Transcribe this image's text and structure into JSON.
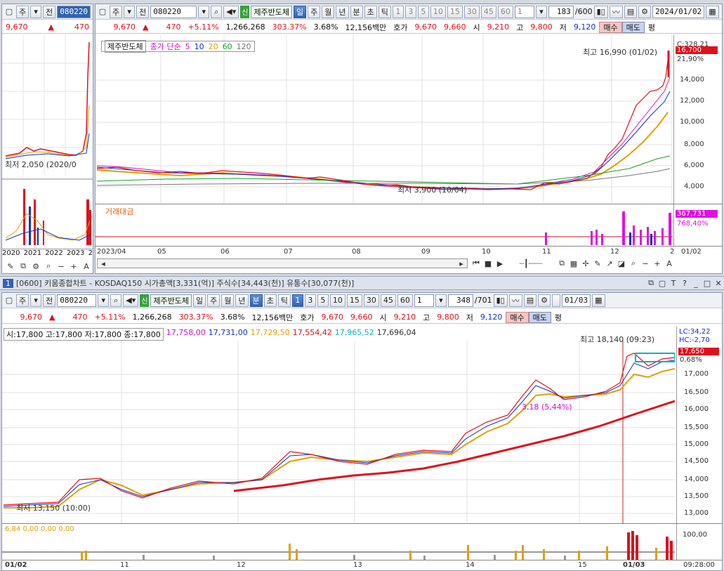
{
  "top_left": {
    "toolbar": {
      "type": "주",
      "prev": "전",
      "code": "080220"
    },
    "quote": {
      "price": "9,670",
      "change": "470"
    },
    "price_low": "최저 2,050 (2020/0",
    "years": [
      "2020",
      "2021",
      "2022",
      "2023",
      "2"
    ]
  },
  "top_main": {
    "toolbar": {
      "type": "주",
      "prev": "전",
      "code": "080220",
      "name": "제주반도체",
      "sin": "신",
      "periods": [
        "일",
        "주",
        "월",
        "년",
        "분",
        "초",
        "틱"
      ],
      "nums": [
        "1",
        "3",
        "5",
        "10",
        "15",
        "30",
        "45",
        "60"
      ],
      "sel": "1",
      "count": "183",
      "total": "/600",
      "date": "2024/01/02"
    },
    "quote": {
      "price": "9,670",
      "change": "470",
      "pct": "+5.11%",
      "volume": "1,266,268",
      "vol_ratio": "303.37%",
      "turnover": "3.68%",
      "amount": "12,156백만",
      "hoga_label": "호가",
      "ask": "9,670",
      "bid": "9,660",
      "open_label": "시",
      "open": "9,210",
      "high_label": "고",
      "high": "9,800",
      "low_label": "저",
      "low": "9,120",
      "buy": "매수",
      "sell": "매도",
      "eval": "평"
    },
    "legend": {
      "name": "제주반도체",
      "ma_label": "종가 단순",
      "ma": [
        "5",
        "10",
        "20",
        "60",
        "120"
      ]
    },
    "high_note": "최고 16,990 (01/02)",
    "low_note": "최저 3,900 (10/04)",
    "price_tag": "16,700",
    "pct_tag": "21,90%",
    "top_tag": "C:328.21",
    "y_ticks": [
      "14,000",
      "12,000",
      "10,000",
      "8,000",
      "6,000",
      "4,000"
    ],
    "vol_label": "거래대금",
    "vol_tag": "367,731",
    "vol_pct": "768,40%",
    "x_ticks": [
      "2023/04",
      "05",
      "06",
      "07",
      "08",
      "09",
      "10",
      "11",
      "12",
      "2",
      "01/02"
    ]
  },
  "titlebar": {
    "num": "1",
    "text": "[0600] 키움종합차트 - KOSDAQ150 시가총액[3,331(억)] 주식수[34,443(천)] 유통수[30,077(천)]"
  },
  "bottom": {
    "toolbar": {
      "type": "주",
      "prev": "전",
      "code": "080220",
      "name": "제주반도체",
      "sin": "신",
      "periods": [
        "일",
        "주",
        "월",
        "년",
        "분",
        "초",
        "틱"
      ],
      "nums": [
        "1",
        "3",
        "5",
        "10",
        "15",
        "30",
        "45",
        "60"
      ],
      "sel": "1",
      "count": "348",
      "total": "/701",
      "date": "01/03"
    },
    "quote": {
      "price": "9,670",
      "change": "470",
      "pct": "+5.11%",
      "volume": "1,266,268",
      "vol_ratio": "303.37%",
      "turnover": "3.68%",
      "amount": "12,156백만",
      "hoga_label": "호가",
      "ask": "9,670",
      "bid": "9,660",
      "open_label": "시",
      "open": "9,210",
      "high_label": "고",
      "high": "9,800",
      "low_label": "저",
      "low": "9,120",
      "buy": "매수",
      "sell": "매도",
      "eval": "평"
    },
    "ohlc": "시:17,800 고:17,800 저:17,800 종:17,800",
    "ma_values": [
      {
        "v": "17,758,00",
        "c": "#d010d0"
      },
      {
        "v": "17,731,00",
        "c": "#1030d0"
      },
      {
        "v": "17,729,50",
        "c": "#e0a000"
      },
      {
        "v": "17,554,42",
        "c": "#e0101a"
      },
      {
        "v": "17,965,52",
        "c": "#10b0c0"
      },
      {
        "v": "17,696,04",
        "c": "#333333"
      }
    ],
    "high_note": "최고 18,140 (09:23)",
    "low_note": "최저 13,150 (10:00)",
    "mid_note": "3,18 (5,44%)",
    "lc": "LC:34,22",
    "hc": "HC:-2,70",
    "price_tag": "17,650",
    "pct_tag": "0,68%",
    "y_ticks": [
      "17,000",
      "16,500",
      "16,000",
      "15,500",
      "15,000",
      "14,500",
      "14,000",
      "13,500",
      "13,000"
    ],
    "vol_values": "6,84 0,00 0,00 0,00",
    "vol_tick": "100,00",
    "x_ticks": [
      "01/02",
      "11",
      "12",
      "13",
      "14",
      "15",
      "01/03",
      "09:28:00"
    ]
  }
}
